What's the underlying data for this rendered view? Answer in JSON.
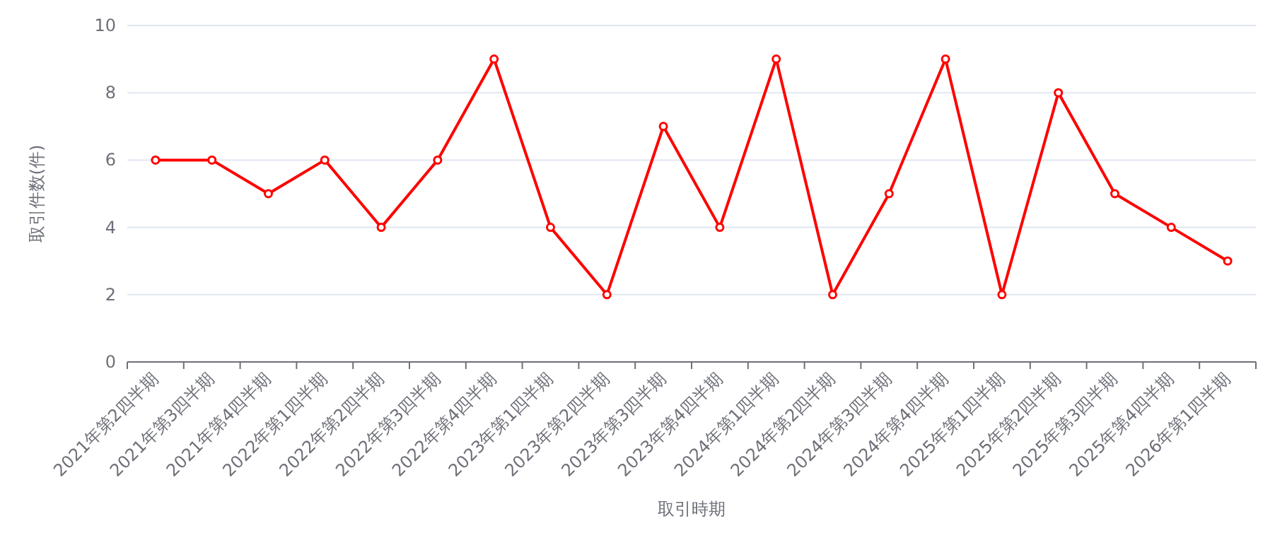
{
  "chart_data": {
    "type": "line",
    "xlabel": "取引時期",
    "ylabel": "取引件数(件)",
    "categories": [
      "2021年第2四半期",
      "2021年第3四半期",
      "2021年第4四半期",
      "2022年第1四半期",
      "2022年第2四半期",
      "2022年第3四半期",
      "2022年第4四半期",
      "2023年第1四半期",
      "2023年第2四半期",
      "2023年第3四半期",
      "2023年第4四半期",
      "2024年第1四半期",
      "2024年第2四半期",
      "2024年第3四半期",
      "2024年第4四半期",
      "2025年第1四半期",
      "2025年第2四半期",
      "2025年第3四半期",
      "2025年第4四半期",
      "2026年第1四半期"
    ],
    "series": [
      {
        "color": "#ff0000",
        "values": [
          6,
          6,
          5,
          6,
          4,
          6,
          9,
          4,
          2,
          7,
          4,
          9,
          2,
          5,
          9,
          2,
          8,
          5,
          4,
          3
        ]
      }
    ],
    "ylim": [
      0,
      10
    ],
    "yticks": [
      0,
      2,
      4,
      6,
      8,
      10
    ],
    "grid": "y",
    "marker": "circle"
  }
}
